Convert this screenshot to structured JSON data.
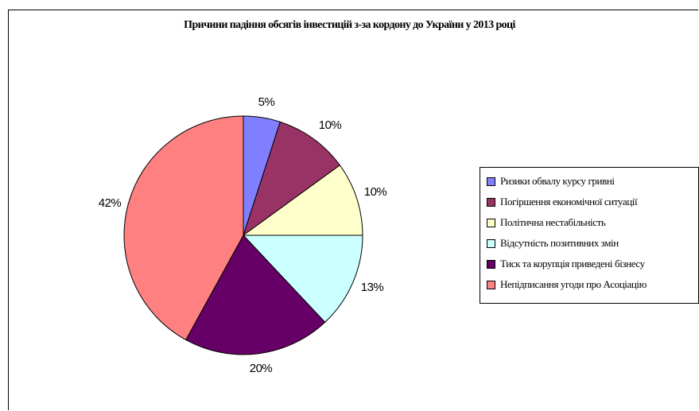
{
  "chart_data": {
    "type": "pie",
    "title": "Причини падіння обсягів інвестицій з-за кордону до України у 2013 році",
    "start_angle": 0,
    "direction": "clockwise",
    "legend_position": "right",
    "slices": [
      {
        "label": "Ризики обвалу курсу гривні",
        "value": 5,
        "value_label": "5%",
        "color": "#7f7fff"
      },
      {
        "label": "Погіршення економічної ситуації",
        "value": 10,
        "value_label": "10%",
        "color": "#993366"
      },
      {
        "label": "Політична нестабільність",
        "value": 10,
        "value_label": "10%",
        "color": "#ffffcc"
      },
      {
        "label": "Відсутність позитивних змін",
        "value": 13,
        "value_label": "13%",
        "color": "#ccffff"
      },
      {
        "label": "Тиск та корупція приведені бізнесу",
        "value": 20,
        "value_label": "20%",
        "color": "#660066"
      },
      {
        "label": "Непідписання угоди про Асоціацію",
        "value": 42,
        "value_label": "42%",
        "color": "#ff8080"
      }
    ]
  }
}
